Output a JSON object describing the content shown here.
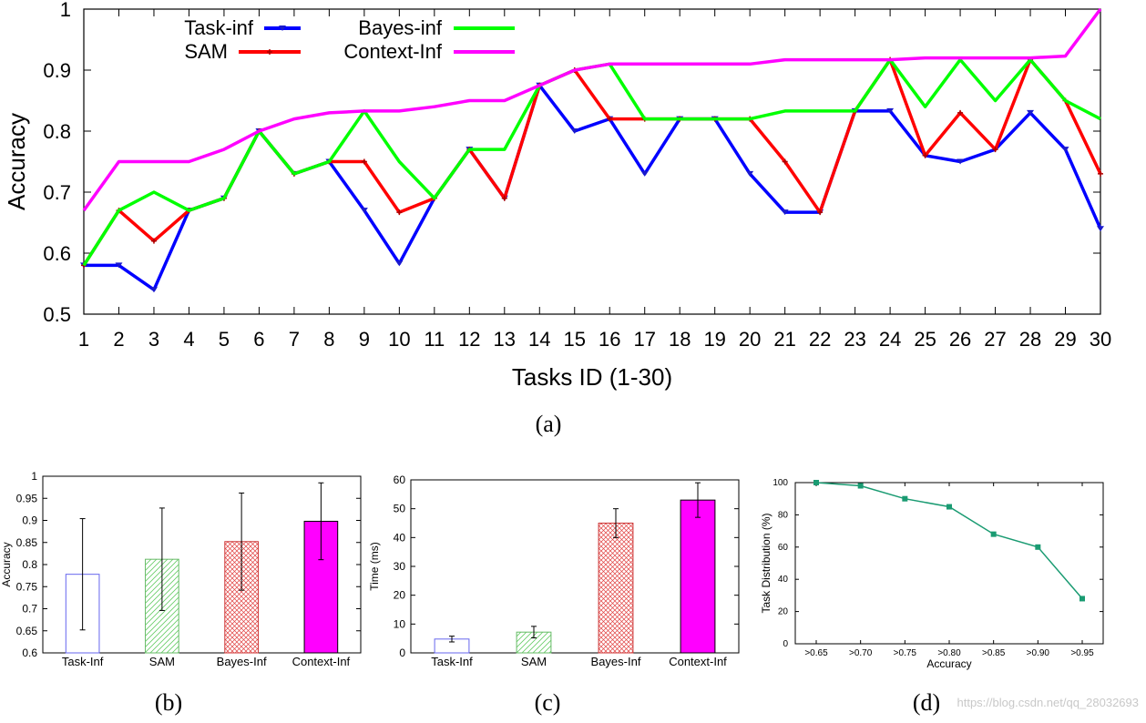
{
  "chart_data": [
    {
      "type": "line",
      "caption": "(a)",
      "xlabel": "Tasks ID (1-30)",
      "ylabel": "Accuracy",
      "xlim": [
        1,
        30
      ],
      "ylim": [
        0.5,
        1
      ],
      "yticks": [
        "0.5",
        "0.6",
        "0.7",
        "0.8",
        "0.9",
        "1"
      ],
      "x": [
        1,
        2,
        3,
        4,
        5,
        6,
        7,
        8,
        9,
        10,
        11,
        12,
        13,
        14,
        15,
        16,
        17,
        18,
        19,
        20,
        21,
        22,
        23,
        24,
        25,
        26,
        27,
        28,
        29,
        30
      ],
      "legend_position": "top-left",
      "series": [
        {
          "name": "Task-inf",
          "color": "#0000ff",
          "values": [
            0.58,
            0.58,
            0.54,
            0.67,
            0.69,
            0.8,
            0.73,
            0.75,
            0.67,
            0.583,
            0.69,
            0.77,
            0.69,
            0.875,
            0.8,
            0.82,
            0.73,
            0.82,
            0.82,
            0.73,
            0.667,
            0.667,
            0.833,
            0.833,
            0.76,
            0.75,
            0.77,
            0.83,
            0.77,
            0.64
          ]
        },
        {
          "name": "SAM",
          "color": "#ff0000",
          "values": [
            0.58,
            0.67,
            0.62,
            0.67,
            0.69,
            0.8,
            0.73,
            0.75,
            0.75,
            0.667,
            0.69,
            0.77,
            0.69,
            0.875,
            0.9,
            0.82,
            0.82,
            0.82,
            0.82,
            0.82,
            0.75,
            0.667,
            0.833,
            0.917,
            0.76,
            0.83,
            0.77,
            0.917,
            0.85,
            0.73
          ]
        },
        {
          "name": "Bayes-inf",
          "color": "#00ff00",
          "values": [
            0.58,
            0.67,
            0.7,
            0.67,
            0.69,
            0.8,
            0.73,
            0.75,
            0.833,
            0.75,
            0.69,
            0.77,
            0.77,
            0.875,
            0.9,
            0.91,
            0.82,
            0.82,
            0.82,
            0.82,
            0.833,
            0.833,
            0.833,
            0.917,
            0.84,
            0.917,
            0.85,
            0.917,
            0.85,
            0.82
          ]
        },
        {
          "name": "Context-Inf",
          "color": "#ff00ff",
          "values": [
            0.67,
            0.75,
            0.75,
            0.75,
            0.77,
            0.8,
            0.82,
            0.83,
            0.833,
            0.833,
            0.84,
            0.85,
            0.85,
            0.875,
            0.9,
            0.91,
            0.91,
            0.91,
            0.91,
            0.91,
            0.917,
            0.917,
            0.917,
            0.917,
            0.92,
            0.92,
            0.92,
            0.92,
            0.923,
            1.0
          ]
        }
      ]
    },
    {
      "type": "bar",
      "caption": "(b)",
      "ylabel": "Accuracy",
      "ylim": [
        0.6,
        1
      ],
      "yticks": [
        "0.6",
        "0.65",
        "0.7",
        "0.75",
        "0.8",
        "0.85",
        "0.9",
        "0.95",
        "1"
      ],
      "categories": [
        "Task-Inf",
        "SAM",
        "Bayes-Inf",
        "Context-Inf"
      ],
      "values": [
        0.778,
        0.812,
        0.852,
        0.898
      ],
      "errors": [
        0.126,
        0.116,
        0.11,
        0.087
      ]
    },
    {
      "type": "bar",
      "caption": "(c)",
      "ylabel": "Time (ms)",
      "ylim": [
        0,
        60
      ],
      "yticks": [
        "0",
        "10",
        "20",
        "30",
        "40",
        "50",
        "60"
      ],
      "categories": [
        "Task-Inf",
        "SAM",
        "Bayes-Inf",
        "Context-Inf"
      ],
      "values": [
        4.8,
        7.2,
        45,
        53
      ],
      "errors": [
        1,
        2,
        5,
        6
      ]
    },
    {
      "type": "line",
      "caption": "(d)",
      "xlabel": "Accuracy",
      "ylabel": "Task Distribution (%)",
      "ylim": [
        0,
        100
      ],
      "yticks": [
        "0",
        "20",
        "40",
        "60",
        "80",
        "100"
      ],
      "categories": [
        ">0.65",
        ">0.70",
        ">0.75",
        ">0.80",
        ">0.85",
        ">0.90",
        ">0.95"
      ],
      "values": [
        100,
        98,
        90,
        85,
        68,
        60,
        28
      ],
      "color": "#1a9b72"
    }
  ],
  "watermark": "https://blog.csdn.net/qq_28032693"
}
